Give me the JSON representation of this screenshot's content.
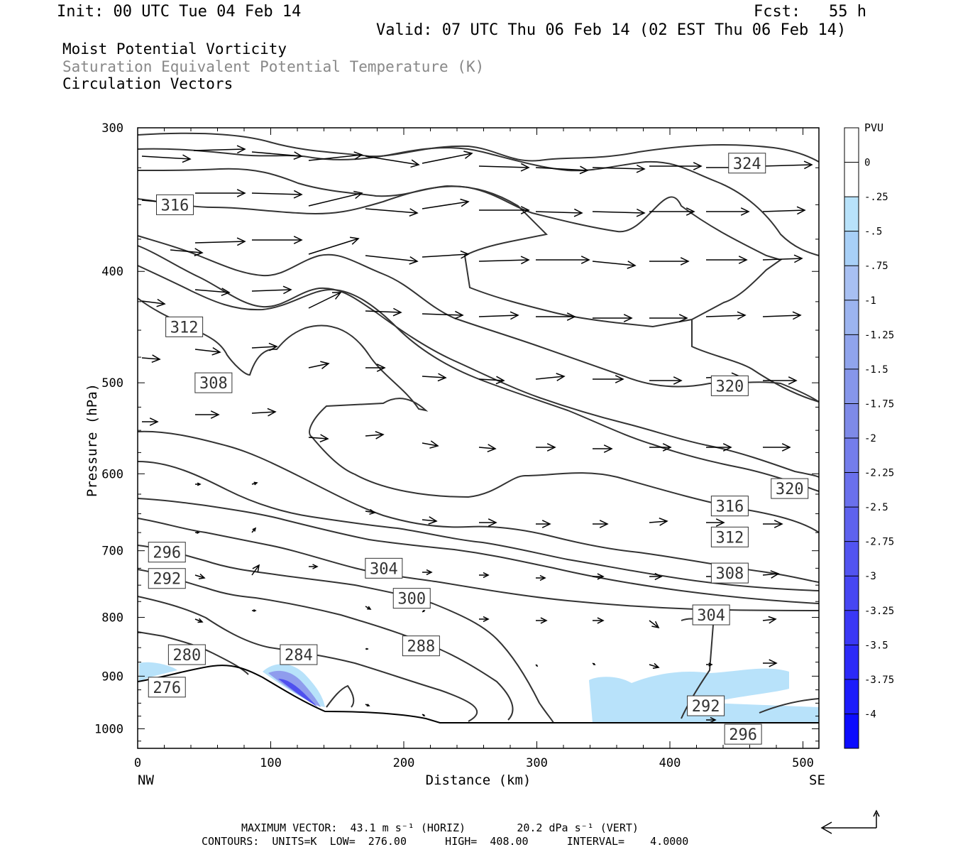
{
  "header": {
    "init": "Init: 00 UTC Tue 04 Feb 14",
    "fcst": "Fcst:   55 h",
    "valid": "Valid: 07 UTC Thu 06 Feb 14 (02 EST Thu 06 Feb 14)"
  },
  "fields": [
    {
      "label": "Moist Potential Vorticity",
      "color": "#000000"
    },
    {
      "label": "Saturation Equivalent Potential Temperature (K)",
      "color": "#888888"
    },
    {
      "label": "Circulation Vectors",
      "color": "#000000"
    }
  ],
  "chart_data": {
    "type": "cross-section",
    "xlabel": "Distance (km)",
    "ylabel": "Pressure (hPa)",
    "xlim": [
      0,
      512
    ],
    "ylim": [
      300,
      1040
    ],
    "y_scale": "log",
    "x_ticks": [
      0,
      100,
      200,
      300,
      400,
      500
    ],
    "y_ticks": [
      300,
      400,
      500,
      600,
      700,
      800,
      900,
      1000
    ],
    "x_end_labels": {
      "left": "NW",
      "right": "SE"
    },
    "colorbar": {
      "title": "PVU",
      "ticks": [
        "0",
        "-.25",
        "-.5",
        "-.75",
        "-1",
        "-1.25",
        "-1.5",
        "-1.75",
        "-2",
        "-2.25",
        "-2.5",
        "-2.75",
        "-3",
        "-3.25",
        "-3.5",
        "-3.75",
        "-4"
      ],
      "colors": [
        "#ffffff",
        "#ffffff",
        "#b8e2fa",
        "#a8d0f7",
        "#a8c0f2",
        "#9cb4ef",
        "#90a4ec",
        "#8696ea",
        "#7e8ae8",
        "#747deb",
        "#6a70ec",
        "#5e62ee",
        "#5254f0",
        "#4646f2",
        "#3a38f5",
        "#2c2af8",
        "#1c1cfb",
        "#0c0cfe"
      ]
    },
    "contour_labels": [
      {
        "value": "324",
        "x": 458,
        "p": 322
      },
      {
        "value": "316",
        "x": 28,
        "p": 350
      },
      {
        "value": "312",
        "x": 35,
        "p": 447
      },
      {
        "value": "308",
        "x": 57,
        "p": 500
      },
      {
        "value": "320",
        "x": 445,
        "p": 503
      },
      {
        "value": "320",
        "x": 490,
        "p": 618
      },
      {
        "value": "316",
        "x": 445,
        "p": 640
      },
      {
        "value": "312",
        "x": 445,
        "p": 681
      },
      {
        "value": "308",
        "x": 445,
        "p": 732
      },
      {
        "value": "304",
        "x": 185,
        "p": 725
      },
      {
        "value": "300",
        "x": 206,
        "p": 770
      },
      {
        "value": "304",
        "x": 431,
        "p": 796
      },
      {
        "value": "296",
        "x": 22,
        "p": 702
      },
      {
        "value": "292",
        "x": 22,
        "p": 740
      },
      {
        "value": "288",
        "x": 213,
        "p": 847
      },
      {
        "value": "284",
        "x": 121,
        "p": 862
      },
      {
        "value": "280",
        "x": 37,
        "p": 862
      },
      {
        "value": "276",
        "x": 22,
        "p": 920
      },
      {
        "value": "292",
        "x": 427,
        "p": 955
      },
      {
        "value": "296",
        "x": 455,
        "p": 1011
      }
    ],
    "max_vector": {
      "horiz": "43.1",
      "vert": "20.2"
    },
    "contours": {
      "units": "K",
      "low": "276.00",
      "high": "408.00",
      "interval": "4.0000"
    }
  },
  "footer": {
    "max_vector": "MAXIMUM VECTOR:  43.1 m s⁻¹ (HORIZ)        20.2 dPa s⁻¹ (VERT)",
    "contours": "CONTOURS:  UNITS=K  LOW=  276.00      HIGH=  408.00      INTERVAL=    4.0000"
  }
}
